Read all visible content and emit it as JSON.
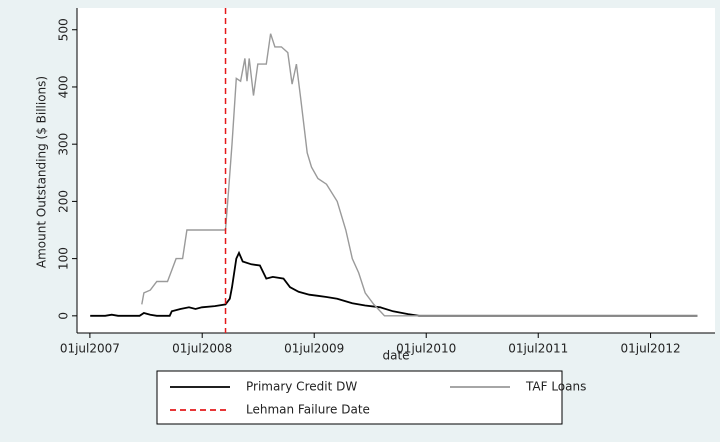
{
  "chart_data": {
    "type": "line",
    "y_label": "Amount Outstanding ($ Billions)",
    "x_label": "date",
    "xlim": [
      "2007-05-20",
      "2013-01-27"
    ],
    "xticks": [
      {
        "value": "2007-07-01",
        "label": "01jul2007"
      },
      {
        "value": "2008-07-01",
        "label": "01jul2008"
      },
      {
        "value": "2009-07-01",
        "label": "01jul2009"
      },
      {
        "value": "2010-07-01",
        "label": "01jul2010"
      },
      {
        "value": "2011-07-01",
        "label": "01jul2011"
      },
      {
        "value": "2012-07-01",
        "label": "01jul2012"
      }
    ],
    "ylim": [
      -30,
      538
    ],
    "yticks": [
      0,
      100,
      200,
      300,
      400,
      500
    ],
    "grid": false,
    "series": [
      {
        "name": "Primary Credit DW",
        "color": "#000000",
        "x": [
          "2007-07-02",
          "2007-08-20",
          "2007-09-10",
          "2007-10-01",
          "2007-12-10",
          "2007-12-24",
          "2008-01-14",
          "2008-02-04",
          "2008-03-17",
          "2008-03-24",
          "2008-04-21",
          "2008-05-19",
          "2008-06-09",
          "2008-06-30",
          "2008-08-11",
          "2008-09-15",
          "2008-09-29",
          "2008-10-06",
          "2008-10-20",
          "2008-10-29",
          "2008-11-10",
          "2008-12-08",
          "2009-01-05",
          "2009-01-26",
          "2009-02-16",
          "2009-03-23",
          "2009-04-13",
          "2009-05-11",
          "2009-06-15",
          "2009-07-13",
          "2009-08-10",
          "2009-09-14",
          "2009-11-02",
          "2009-12-14",
          "2010-02-01",
          "2010-03-15",
          "2010-05-03",
          "2010-06-07",
          "2012-12-01"
        ],
        "values": [
          0,
          0,
          2,
          0,
          0,
          5,
          2,
          0,
          0,
          8,
          12,
          15,
          12,
          15,
          17,
          20,
          30,
          50,
          100,
          110,
          95,
          90,
          88,
          65,
          68,
          65,
          50,
          42,
          37,
          35,
          33,
          30,
          22,
          18,
          15,
          8,
          3,
          0,
          0
        ]
      },
      {
        "name": "TAF Loans",
        "color": "#9a9a9a",
        "x": [
          "2007-12-17",
          "2007-12-24",
          "2008-01-14",
          "2008-02-04",
          "2008-03-10",
          "2008-03-24",
          "2008-04-07",
          "2008-04-28",
          "2008-05-12",
          "2008-09-15",
          "2008-09-25",
          "2008-10-06",
          "2008-10-20",
          "2008-11-03",
          "2008-11-17",
          "2008-11-24",
          "2008-12-01",
          "2008-12-15",
          "2008-12-29",
          "2009-01-12",
          "2009-01-26",
          "2009-02-09",
          "2009-02-23",
          "2009-03-16",
          "2009-04-06",
          "2009-04-20",
          "2009-05-04",
          "2009-05-18",
          "2009-06-08",
          "2009-06-22",
          "2009-07-13",
          "2009-08-10",
          "2009-09-14",
          "2009-10-12",
          "2009-11-02",
          "2009-11-23",
          "2009-12-14",
          "2010-01-11",
          "2010-02-15",
          "2012-12-01"
        ],
        "values": [
          20,
          40,
          45,
          60,
          60,
          80,
          100,
          100,
          150,
          150,
          220,
          300,
          415,
          410,
          450,
          410,
          450,
          385,
          440,
          440,
          440,
          493,
          470,
          470,
          460,
          405,
          440,
          380,
          285,
          260,
          240,
          230,
          200,
          150,
          100,
          75,
          40,
          20,
          0,
          0
        ]
      }
    ],
    "vlines": [
      {
        "name": "Lehman Failure Date",
        "x": "2008-09-15",
        "color": "#e41a1c",
        "dash": true
      }
    ]
  }
}
